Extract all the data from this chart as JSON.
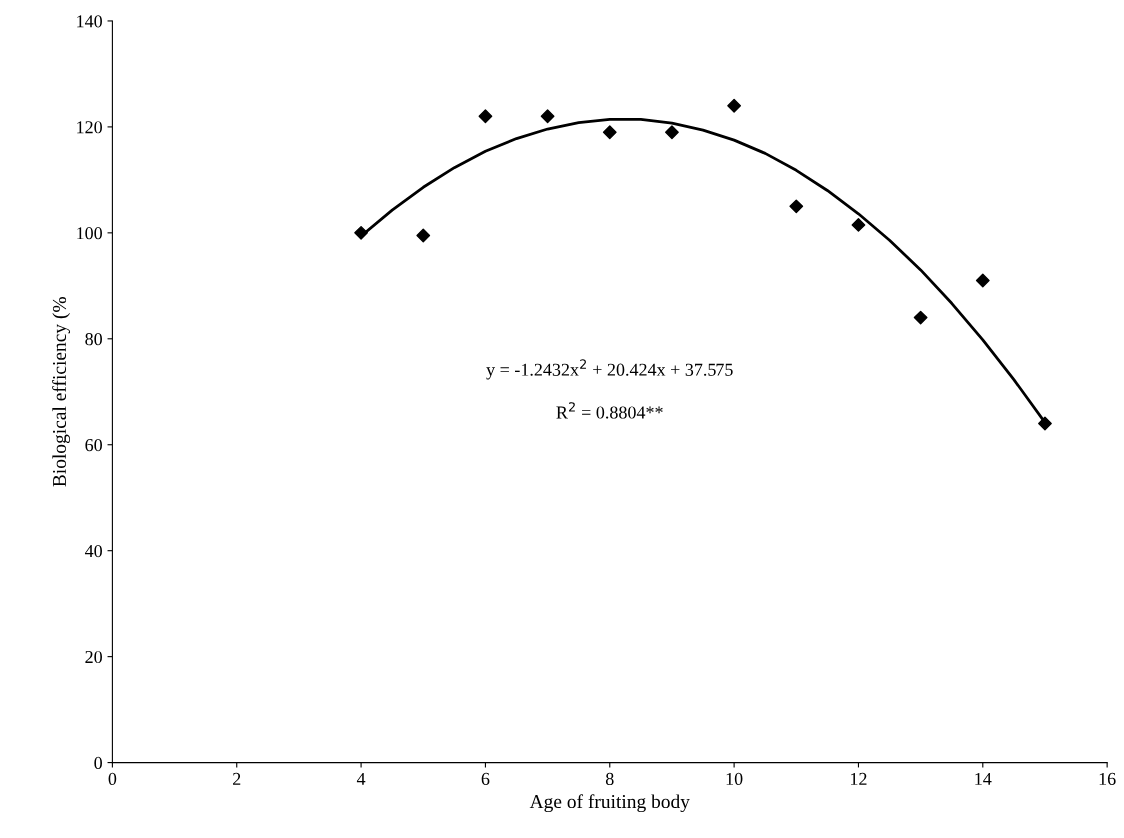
{
  "chart_data": {
    "type": "scatter",
    "xlabel": "Age of fruiting body",
    "ylabel": "Biological efficiency (%",
    "xlim": [
      0,
      16
    ],
    "xticks": [
      0,
      2,
      4,
      6,
      8,
      10,
      12,
      14,
      16
    ],
    "ylim": [
      0,
      140
    ],
    "yticks": [
      0,
      20,
      40,
      60,
      80,
      100,
      120,
      140
    ],
    "grid": false,
    "legend": false,
    "series": [
      {
        "type": "scatter",
        "marker": "diamond",
        "color": "#000000",
        "x": [
          4,
          5,
          6,
          7,
          8,
          9,
          10,
          11,
          12,
          13,
          14,
          15
        ],
        "values": [
          100,
          99.5,
          122,
          122,
          119,
          119,
          124,
          105,
          101.5,
          84,
          91,
          64
        ]
      },
      {
        "type": "line",
        "marker": "none",
        "line_style": "solid",
        "color": "#000000",
        "x": [
          4,
          4.5,
          5,
          5.5,
          6,
          6.5,
          7,
          7.5,
          8,
          8.5,
          9,
          9.5,
          10,
          10.5,
          11,
          11.5,
          12,
          12.5,
          13,
          13.5,
          14,
          14.5,
          15
        ],
        "values": [
          99.4,
          104.3,
          108.6,
          112.3,
          115.4,
          117.8,
          119.6,
          120.8,
          121.4,
          121.4,
          120.7,
          119.4,
          117.5,
          115.0,
          111.8,
          108.0,
          103.6,
          98.6,
          93.0,
          86.7,
          79.8,
          72.3,
          64.2
        ]
      }
    ],
    "annotations": [
      "y = -1.2432x$^{2}$ + 20.424x + 37.575",
      "R$^{2}$ = 0.8804**"
    ]
  }
}
